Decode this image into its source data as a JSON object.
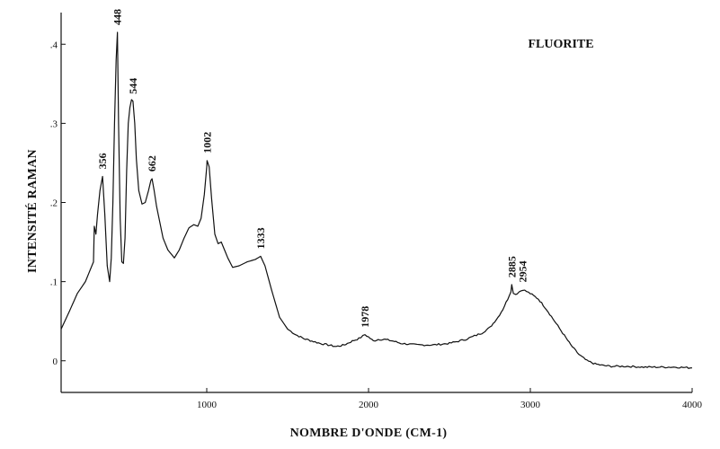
{
  "chart_data": {
    "type": "line",
    "title": "FLUORITE",
    "xlabel": "NOMBRE D'ONDE (CM-1)",
    "ylabel": "INTENSITÉ RAMAN",
    "xlim": [
      100,
      4000
    ],
    "ylim": [
      -0.04,
      0.44
    ],
    "xticks": [
      1000,
      2000,
      3000,
      4000
    ],
    "yticks": [
      0,
      0.1,
      0.2,
      0.3,
      0.4
    ],
    "ytick_labels": [
      "0",
      ".1",
      ".2",
      ".3",
      ".4"
    ],
    "grid": false,
    "series": [
      {
        "x": [
          100,
          150,
          200,
          250,
          300,
          305,
          315,
          325,
          340,
          356,
          370,
          385,
          400,
          410,
          420,
          430,
          440,
          448,
          455,
          465,
          475,
          485,
          495,
          505,
          515,
          525,
          535,
          544,
          555,
          565,
          580,
          600,
          620,
          640,
          655,
          662,
          675,
          690,
          710,
          730,
          760,
          800,
          830,
          860,
          890,
          920,
          945,
          965,
          985,
          1000,
          1002,
          1015,
          1030,
          1050,
          1070,
          1090,
          1110,
          1130,
          1160,
          1200,
          1250,
          1300,
          1333,
          1360,
          1400,
          1450,
          1500,
          1550,
          1600,
          1650,
          1700,
          1750,
          1800,
          1850,
          1900,
          1940,
          1978,
          2000,
          2030,
          2060,
          2100,
          2150,
          2200,
          2300,
          2400,
          2500,
          2600,
          2700,
          2750,
          2800,
          2830,
          2860,
          2880,
          2885,
          2895,
          2910,
          2930,
          2954,
          3000,
          3050,
          3100,
          3150,
          3200,
          3250,
          3300,
          3350,
          3400,
          3450,
          3500,
          3600,
          3700,
          3800,
          3900,
          4000
        ],
        "values": [
          0.04,
          0.062,
          0.085,
          0.1,
          0.125,
          0.17,
          0.16,
          0.185,
          0.215,
          0.233,
          0.185,
          0.12,
          0.1,
          0.13,
          0.2,
          0.3,
          0.38,
          0.415,
          0.3,
          0.18,
          0.125,
          0.123,
          0.155,
          0.24,
          0.3,
          0.32,
          0.33,
          0.328,
          0.3,
          0.255,
          0.215,
          0.198,
          0.2,
          0.215,
          0.228,
          0.23,
          0.215,
          0.195,
          0.175,
          0.155,
          0.14,
          0.13,
          0.14,
          0.155,
          0.168,
          0.172,
          0.17,
          0.18,
          0.21,
          0.245,
          0.253,
          0.245,
          0.205,
          0.16,
          0.148,
          0.15,
          0.14,
          0.13,
          0.118,
          0.12,
          0.125,
          0.128,
          0.132,
          0.12,
          0.09,
          0.055,
          0.04,
          0.033,
          0.028,
          0.025,
          0.022,
          0.02,
          0.018,
          0.02,
          0.025,
          0.028,
          0.033,
          0.03,
          0.025,
          0.027,
          0.027,
          0.025,
          0.022,
          0.02,
          0.02,
          0.022,
          0.027,
          0.035,
          0.042,
          0.055,
          0.065,
          0.078,
          0.088,
          0.096,
          0.086,
          0.084,
          0.087,
          0.09,
          0.085,
          0.078,
          0.065,
          0.05,
          0.035,
          0.02,
          0.008,
          0.0,
          -0.004,
          -0.006,
          -0.007,
          -0.007,
          -0.008,
          -0.008,
          -0.008,
          -0.009
        ]
      }
    ],
    "peak_labels": [
      {
        "text": "356",
        "x": 356,
        "y": 0.233
      },
      {
        "text": "448",
        "x": 448,
        "y": 0.415
      },
      {
        "text": "544",
        "x": 544,
        "y": 0.328
      },
      {
        "text": "662",
        "x": 662,
        "y": 0.23
      },
      {
        "text": "1002",
        "x": 1002,
        "y": 0.253
      },
      {
        "text": "1333",
        "x": 1333,
        "y": 0.132
      },
      {
        "text": "1978",
        "x": 1978,
        "y": 0.033
      },
      {
        "text": "2885",
        "x": 2885,
        "y": 0.096
      },
      {
        "text": "2954",
        "x": 2954,
        "y": 0.09
      }
    ]
  }
}
